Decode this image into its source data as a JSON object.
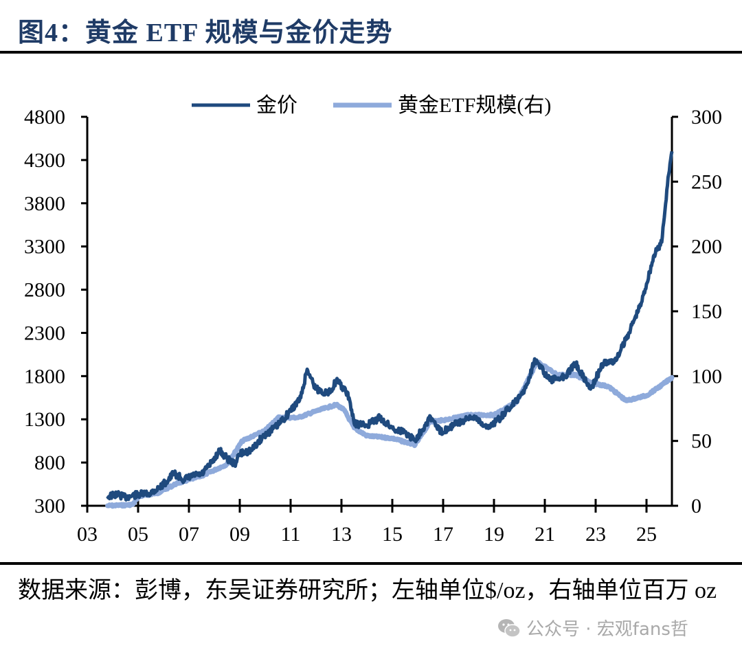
{
  "title": "图4：黄金 ETF 规模与金价走势",
  "source": "数据来源：彭博，东吴证券研究所；左轴单位$/oz，右轴单位百万 oz",
  "watermark": "公众号 · 宏观fans哲",
  "colors": {
    "gold_price": "#1f4a7e",
    "etf": "#8eaadb",
    "title": "#1f3b66"
  },
  "chart_data": {
    "type": "line",
    "title": "黄金 ETF 规模与金价走势",
    "xlabel": "",
    "ylabel": "$/oz",
    "y2label": "百万 oz",
    "xlim": [
      2003,
      2026
    ],
    "ylim": [
      300,
      4800
    ],
    "y2lim": [
      0,
      300
    ],
    "x_ticks": [
      "03",
      "05",
      "07",
      "09",
      "11",
      "13",
      "15",
      "17",
      "19",
      "21",
      "23",
      "25"
    ],
    "y_ticks": [
      "4800",
      "4300",
      "3800",
      "3300",
      "2800",
      "2300",
      "1800",
      "1300",
      "800",
      "300"
    ],
    "y2_ticks": [
      "300",
      "250",
      "200",
      "150",
      "100",
      "50",
      "0"
    ],
    "legend_position": "top",
    "grid": false,
    "series": [
      {
        "name": "金价",
        "axis": "left",
        "x": [
          2003.8,
          2004.2,
          2004.5,
          2005.0,
          2005.4,
          2005.8,
          2006.2,
          2006.4,
          2006.8,
          2007.2,
          2007.5,
          2007.9,
          2008.2,
          2008.5,
          2008.8,
          2009.0,
          2009.5,
          2009.9,
          2010.5,
          2011.0,
          2011.4,
          2011.65,
          2012.0,
          2012.5,
          2012.8,
          2013.1,
          2013.3,
          2013.5,
          2014.0,
          2014.5,
          2015.0,
          2015.5,
          2015.9,
          2016.5,
          2016.9,
          2017.5,
          2018.3,
          2018.7,
          2019.2,
          2019.5,
          2020.0,
          2020.3,
          2020.6,
          2021.2,
          2021.8,
          2022.2,
          2022.8,
          2023.3,
          2023.8,
          2024.3,
          2024.8,
          2025.3,
          2025.6,
          2025.85,
          2026.0
        ],
        "values": [
          410,
          430,
          400,
          430,
          440,
          500,
          600,
          680,
          600,
          650,
          660,
          800,
          940,
          850,
          780,
          900,
          950,
          1100,
          1230,
          1400,
          1550,
          1880,
          1650,
          1600,
          1750,
          1650,
          1550,
          1250,
          1230,
          1320,
          1200,
          1150,
          1060,
          1330,
          1150,
          1250,
          1330,
          1200,
          1300,
          1400,
          1550,
          1700,
          2000,
          1750,
          1800,
          1950,
          1650,
          1950,
          1980,
          2300,
          2650,
          3200,
          3350,
          4100,
          4400
        ]
      },
      {
        "name": "黄金ETF规模(右)",
        "axis": "right",
        "x": [
          2003.8,
          2004.5,
          2004.8,
          2005.0,
          2005.8,
          2006.5,
          2007.5,
          2008.5,
          2009.1,
          2010.0,
          2010.5,
          2011.3,
          2012.0,
          2012.8,
          2013.1,
          2013.5,
          2014.0,
          2015.0,
          2015.9,
          2016.5,
          2017.0,
          2018.0,
          2019.0,
          2019.9,
          2020.7,
          2021.5,
          2022.2,
          2022.8,
          2023.5,
          2024.2,
          2025.0,
          2025.6,
          2026.0
        ],
        "values": [
          0,
          0.5,
          1,
          7,
          10,
          17,
          23,
          32,
          50,
          58,
          68,
          68,
          73,
          78,
          74,
          60,
          54,
          52,
          47,
          65,
          66,
          70,
          70,
          80,
          111,
          101,
          101,
          95,
          92,
          81,
          85,
          93,
          99
        ]
      }
    ]
  }
}
